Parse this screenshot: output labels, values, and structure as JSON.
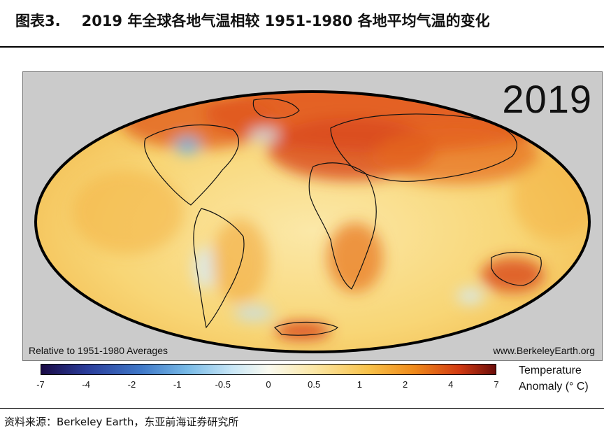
{
  "header": {
    "figure_label": "图表3.",
    "title": "2019 年全球各地气温相较 1951-1980 各地平均气温的变化"
  },
  "figure": {
    "year": "2019",
    "baseline_label": "Relative to 1951-1980 Averages",
    "website": "www.BerkeleyEarth.org",
    "colorbar": {
      "ticks": [
        "-7",
        "-4",
        "-2",
        "-1",
        "-0.5",
        "0",
        "0.5",
        "1",
        "2",
        "4",
        "7"
      ],
      "unit_line1": "Temperature",
      "unit_line2": "Anomaly (° C)",
      "colors": {
        "min": "#1a0a45",
        "cold": "#3f78c8",
        "neutral": "#fafaf0",
        "warm": "#f8c24a",
        "hot": "#d23a12",
        "max": "#6b0d0a"
      }
    }
  },
  "footer": {
    "source": "资料来源：Berkeley Earth，东亚前海证券研究所"
  }
}
